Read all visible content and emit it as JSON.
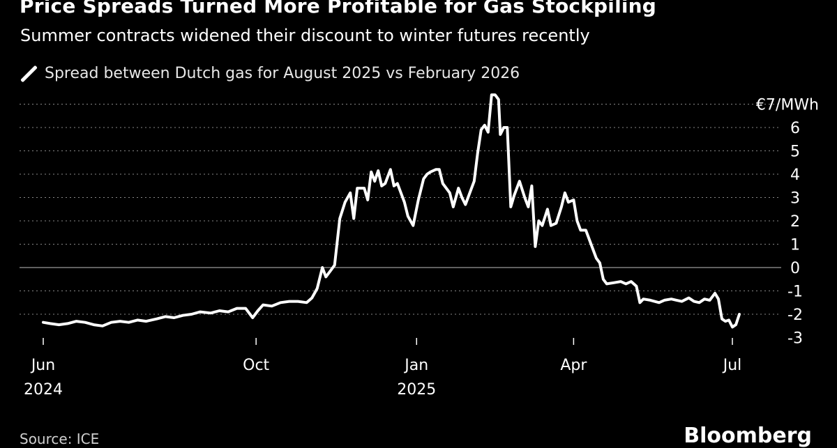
{
  "title": "Price Spreads Turned More Profitable for Gas Stockpiling",
  "subtitle": "Summer contracts widened their discount to winter futures recently",
  "source": "Source: ICE",
  "brand": "Bloomberg",
  "colors": {
    "background": "#000000",
    "line": "#ffffff",
    "grid": "#8a8a8a",
    "text": "#ffffff"
  },
  "chart_data": {
    "type": "line",
    "series": [
      {
        "name": "Spread between Dutch gas for August 2025 vs February 2026",
        "points": [
          [
            "2024-06-01",
            -2.35
          ],
          [
            "2024-06-05",
            -2.4
          ],
          [
            "2024-06-10",
            -2.45
          ],
          [
            "2024-06-15",
            -2.4
          ],
          [
            "2024-06-20",
            -2.3
          ],
          [
            "2024-06-25",
            -2.35
          ],
          [
            "2024-06-30",
            -2.45
          ],
          [
            "2024-07-05",
            -2.5
          ],
          [
            "2024-07-10",
            -2.35
          ],
          [
            "2024-07-15",
            -2.3
          ],
          [
            "2024-07-20",
            -2.35
          ],
          [
            "2024-07-25",
            -2.25
          ],
          [
            "2024-07-30",
            -2.3
          ],
          [
            "2024-08-05",
            -2.2
          ],
          [
            "2024-08-10",
            -2.1
          ],
          [
            "2024-08-15",
            -2.15
          ],
          [
            "2024-08-20",
            -2.05
          ],
          [
            "2024-08-25",
            -2.0
          ],
          [
            "2024-08-30",
            -1.9
          ],
          [
            "2024-09-05",
            -1.95
          ],
          [
            "2024-09-10",
            -1.85
          ],
          [
            "2024-09-15",
            -1.9
          ],
          [
            "2024-09-20",
            -1.75
          ],
          [
            "2024-09-25",
            -1.75
          ],
          [
            "2024-09-29",
            -2.15
          ],
          [
            "2024-10-02",
            -1.85
          ],
          [
            "2024-10-05",
            -1.6
          ],
          [
            "2024-10-10",
            -1.65
          ],
          [
            "2024-10-15",
            -1.5
          ],
          [
            "2024-10-20",
            -1.45
          ],
          [
            "2024-10-25",
            -1.45
          ],
          [
            "2024-10-30",
            -1.5
          ],
          [
            "2024-11-02",
            -1.3
          ],
          [
            "2024-11-05",
            -0.9
          ],
          [
            "2024-11-08",
            0.0
          ],
          [
            "2024-11-10",
            -0.4
          ],
          [
            "2024-11-13",
            -0.1
          ],
          [
            "2024-11-15",
            0.1
          ],
          [
            "2024-11-18",
            2.1
          ],
          [
            "2024-11-21",
            2.8
          ],
          [
            "2024-11-24",
            3.2
          ],
          [
            "2024-11-26",
            2.1
          ],
          [
            "2024-11-28",
            3.4
          ],
          [
            "2024-12-02",
            3.4
          ],
          [
            "2024-12-04",
            2.9
          ],
          [
            "2024-12-06",
            4.1
          ],
          [
            "2024-12-08",
            3.7
          ],
          [
            "2024-12-10",
            4.15
          ],
          [
            "2024-12-12",
            3.5
          ],
          [
            "2024-12-14",
            3.6
          ],
          [
            "2024-12-17",
            4.2
          ],
          [
            "2024-12-19",
            3.5
          ],
          [
            "2024-12-21",
            3.6
          ],
          [
            "2024-12-23",
            3.2
          ],
          [
            "2024-12-25",
            2.8
          ],
          [
            "2024-12-27",
            2.2
          ],
          [
            "2024-12-30",
            1.8
          ],
          [
            "2025-01-02",
            2.9
          ],
          [
            "2025-01-05",
            3.8
          ],
          [
            "2025-01-07",
            4.0
          ],
          [
            "2025-01-09",
            4.1
          ],
          [
            "2025-01-12",
            4.2
          ],
          [
            "2025-01-14",
            4.2
          ],
          [
            "2025-01-16",
            3.6
          ],
          [
            "2025-01-18",
            3.4
          ],
          [
            "2025-01-20",
            3.2
          ],
          [
            "2025-01-22",
            2.6
          ],
          [
            "2025-01-25",
            3.4
          ],
          [
            "2025-01-27",
            3.0
          ],
          [
            "2025-01-29",
            2.7
          ],
          [
            "2025-02-01",
            3.3
          ],
          [
            "2025-02-03",
            3.7
          ],
          [
            "2025-02-05",
            4.9
          ],
          [
            "2025-02-07",
            5.9
          ],
          [
            "2025-02-09",
            6.1
          ],
          [
            "2025-02-11",
            5.8
          ],
          [
            "2025-02-13",
            7.4
          ],
          [
            "2025-02-15",
            7.4
          ],
          [
            "2025-02-17",
            7.2
          ],
          [
            "2025-02-18",
            5.7
          ],
          [
            "2025-02-20",
            6.0
          ],
          [
            "2025-02-22",
            6.0
          ],
          [
            "2025-02-24",
            2.6
          ],
          [
            "2025-02-26",
            3.1
          ],
          [
            "2025-03-01",
            3.7
          ],
          [
            "2025-03-04",
            3.0
          ],
          [
            "2025-03-06",
            2.6
          ],
          [
            "2025-03-08",
            3.5
          ],
          [
            "2025-03-10",
            0.9
          ],
          [
            "2025-03-12",
            2.0
          ],
          [
            "2025-03-14",
            1.8
          ],
          [
            "2025-03-17",
            2.5
          ],
          [
            "2025-03-19",
            1.8
          ],
          [
            "2025-03-22",
            1.9
          ],
          [
            "2025-03-25",
            2.6
          ],
          [
            "2025-03-27",
            3.2
          ],
          [
            "2025-03-29",
            2.8
          ],
          [
            "2025-04-01",
            2.9
          ],
          [
            "2025-04-03",
            2.0
          ],
          [
            "2025-04-05",
            1.6
          ],
          [
            "2025-04-08",
            1.6
          ],
          [
            "2025-04-11",
            1.0
          ],
          [
            "2025-04-14",
            0.4
          ],
          [
            "2025-04-16",
            0.2
          ],
          [
            "2025-04-18",
            -0.5
          ],
          [
            "2025-04-20",
            -0.7
          ],
          [
            "2025-04-24",
            -0.65
          ],
          [
            "2025-04-28",
            -0.6
          ],
          [
            "2025-05-01",
            -0.7
          ],
          [
            "2025-05-04",
            -0.6
          ],
          [
            "2025-05-07",
            -0.8
          ],
          [
            "2025-05-09",
            -1.5
          ],
          [
            "2025-05-11",
            -1.35
          ],
          [
            "2025-05-15",
            -1.4
          ],
          [
            "2025-05-20",
            -1.5
          ],
          [
            "2025-05-23",
            -1.4
          ],
          [
            "2025-05-27",
            -1.35
          ],
          [
            "2025-05-30",
            -1.4
          ],
          [
            "2025-06-02",
            -1.45
          ],
          [
            "2025-06-06",
            -1.3
          ],
          [
            "2025-06-09",
            -1.45
          ],
          [
            "2025-06-12",
            -1.5
          ],
          [
            "2025-06-15",
            -1.35
          ],
          [
            "2025-06-18",
            -1.4
          ],
          [
            "2025-06-21",
            -1.1
          ],
          [
            "2025-06-23",
            -1.35
          ],
          [
            "2025-06-25",
            -2.2
          ],
          [
            "2025-06-27",
            -2.3
          ],
          [
            "2025-06-29",
            -2.25
          ],
          [
            "2025-07-01",
            -2.55
          ],
          [
            "2025-07-03",
            -2.45
          ],
          [
            "2025-07-05",
            -2.0
          ]
        ]
      }
    ],
    "y_axis": {
      "unit_label": "€7/MWh",
      "ticks": [
        {
          "value": 7,
          "label": "€7/MWh"
        },
        {
          "value": 6,
          "label": "6"
        },
        {
          "value": 5,
          "label": "5"
        },
        {
          "value": 4,
          "label": "4"
        },
        {
          "value": 3,
          "label": "3"
        },
        {
          "value": 2,
          "label": "2"
        },
        {
          "value": 1,
          "label": "1"
        },
        {
          "value": 0,
          "label": "0"
        },
        {
          "value": -1,
          "label": "-1"
        },
        {
          "value": -2,
          "label": "-2"
        },
        {
          "value": -3,
          "label": "-3"
        }
      ],
      "range": [
        -3,
        7
      ],
      "position": "right",
      "grid": "dotted"
    },
    "x_axis": {
      "range": [
        "2024-06-01",
        "2025-07-10"
      ],
      "ticks": [
        {
          "date": "2024-06-01",
          "line1": "Jun",
          "line2": "2024"
        },
        {
          "date": "2024-10-01",
          "line1": "Oct",
          "line2": ""
        },
        {
          "date": "2025-01-01",
          "line1": "Jan",
          "line2": "2025"
        },
        {
          "date": "2025-04-01",
          "line1": "Apr",
          "line2": ""
        },
        {
          "date": "2025-07-01",
          "line1": "Jul",
          "line2": ""
        }
      ]
    },
    "legend_position": "top-left"
  }
}
